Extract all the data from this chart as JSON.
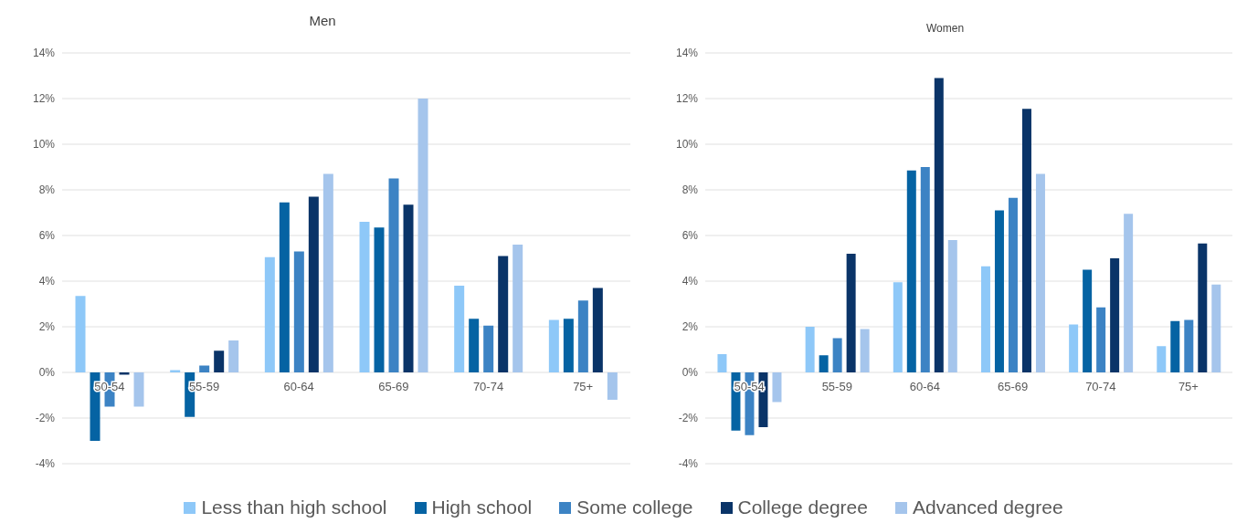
{
  "chart_data": [
    {
      "type": "bar",
      "title": "Men",
      "categories": [
        "50-54",
        "55-59",
        "60-64",
        "65-69",
        "70-74",
        "75+"
      ],
      "series": [
        {
          "name": "Less than high school",
          "color": "#8ec8f8",
          "values": [
            3.35,
            0.1,
            5.05,
            6.6,
            3.8,
            2.3
          ]
        },
        {
          "name": "High school",
          "color": "#0563a3",
          "values": [
            -3.0,
            -1.95,
            7.45,
            6.35,
            2.35,
            2.35
          ]
        },
        {
          "name": "Some college",
          "color": "#3c83c4",
          "values": [
            -1.5,
            0.3,
            5.3,
            8.5,
            2.05,
            3.15
          ]
        },
        {
          "name": "College degree",
          "color": "#0a3468",
          "values": [
            -0.1,
            0.95,
            7.7,
            7.35,
            5.1,
            3.7
          ]
        },
        {
          "name": "Advanced degree",
          "color": "#a5c5ec",
          "values": [
            -1.5,
            1.4,
            8.7,
            12.0,
            5.6,
            -1.2
          ]
        }
      ],
      "ylim": [
        -4,
        14
      ],
      "yticks": [
        {
          "value": -4,
          "label": "-4%"
        },
        {
          "value": -2,
          "label": "-2%"
        },
        {
          "value": 0,
          "label": "0%"
        },
        {
          "value": 2,
          "label": "2%"
        },
        {
          "value": 4,
          "label": "4%"
        },
        {
          "value": 6,
          "label": "6%"
        },
        {
          "value": 8,
          "label": "8%"
        },
        {
          "value": 10,
          "label": "10%"
        },
        {
          "value": 12,
          "label": "12%"
        },
        {
          "value": 14,
          "label": "14%"
        }
      ],
      "grid": "y",
      "legend": "bottom"
    },
    {
      "type": "bar",
      "title": "Women",
      "categories": [
        "50-54",
        "55-59",
        "60-64",
        "65-69",
        "70-74",
        "75+"
      ],
      "series": [
        {
          "color": "#8ec8f8",
          "values": [
            0.8,
            2.0,
            3.95,
            4.65,
            2.1,
            1.15
          ]
        },
        {
          "color": "#0563a3",
          "values": [
            -2.55,
            0.75,
            8.85,
            7.1,
            4.5,
            2.25
          ]
        },
        {
          "color": "#3c83c4",
          "values": [
            -2.75,
            1.5,
            9.0,
            7.65,
            2.85,
            2.3
          ]
        },
        {
          "color": "#0a3468",
          "values": [
            -2.4,
            5.2,
            12.9,
            11.55,
            5.0,
            5.65
          ]
        },
        {
          "color": "#a5c5ec",
          "values": [
            -1.3,
            1.9,
            5.8,
            8.7,
            6.95,
            3.85
          ]
        }
      ],
      "ylim": [
        -4,
        14
      ],
      "yticks": [
        {
          "value": -4,
          "label": "-4%"
        },
        {
          "value": -2,
          "label": "-2%"
        },
        {
          "value": 0,
          "label": "0%"
        },
        {
          "value": 2,
          "label": "2%"
        },
        {
          "value": 4,
          "label": "4%"
        },
        {
          "value": 6,
          "label": "6%"
        },
        {
          "value": 8,
          "label": "8%"
        },
        {
          "value": 10,
          "label": "10%"
        },
        {
          "value": 12,
          "label": "12%"
        },
        {
          "value": 14,
          "label": "14%"
        }
      ],
      "grid": "y"
    }
  ]
}
